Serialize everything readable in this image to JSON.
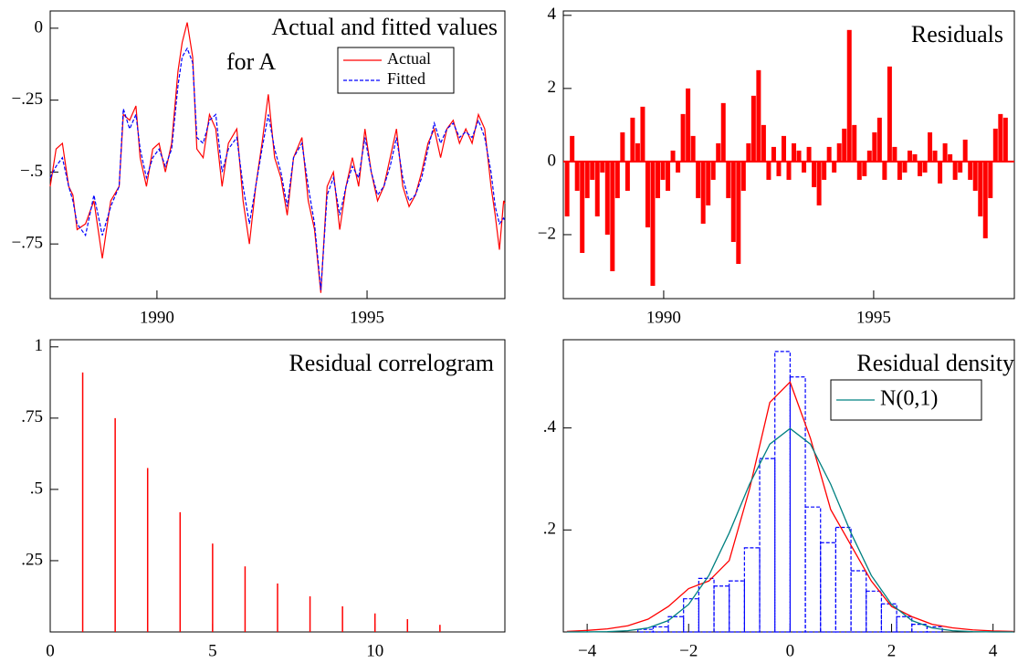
{
  "chart_data": [
    {
      "type": "line",
      "title": [
        "Actual and fitted values",
        "for A"
      ],
      "x": [
        1987.46,
        1987.6,
        1987.75,
        1987.9,
        1988.0,
        1988.1,
        1988.3,
        1988.5,
        1988.7,
        1988.9,
        1989.1,
        1989.2,
        1989.35,
        1989.5,
        1989.6,
        1989.75,
        1989.9,
        1990.05,
        1990.2,
        1990.35,
        1990.5,
        1990.6,
        1990.72,
        1990.85,
        1990.95,
        1991.1,
        1991.25,
        1991.4,
        1991.55,
        1991.7,
        1991.9,
        1992.05,
        1992.2,
        1992.35,
        1992.5,
        1992.65,
        1992.8,
        1992.95,
        1993.1,
        1993.25,
        1993.45,
        1993.6,
        1993.75,
        1993.9,
        1994.05,
        1994.2,
        1994.35,
        1994.5,
        1994.65,
        1994.8,
        1994.95,
        1995.1,
        1995.25,
        1995.4,
        1995.55,
        1995.7,
        1995.85,
        1996.0,
        1996.15,
        1996.3,
        1996.45,
        1996.6,
        1996.75,
        1996.9,
        1997.05,
        1997.2,
        1997.35,
        1997.5,
        1997.65,
        1997.8,
        1997.95,
        1998.05,
        1998.15,
        1998.25,
        1998.28
      ],
      "series": [
        {
          "name": "Actual",
          "color": "#ff0000",
          "line_style": "solid",
          "values": [
            -0.55,
            -0.42,
            -0.4,
            -0.55,
            -0.58,
            -0.7,
            -0.68,
            -0.6,
            -0.8,
            -0.6,
            -0.55,
            -0.3,
            -0.32,
            -0.27,
            -0.45,
            -0.55,
            -0.42,
            -0.4,
            -0.5,
            -0.4,
            -0.15,
            -0.05,
            0.02,
            -0.1,
            -0.42,
            -0.45,
            -0.3,
            -0.35,
            -0.55,
            -0.4,
            -0.35,
            -0.6,
            -0.75,
            -0.55,
            -0.4,
            -0.23,
            -0.45,
            -0.52,
            -0.65,
            -0.45,
            -0.38,
            -0.6,
            -0.7,
            -0.92,
            -0.55,
            -0.5,
            -0.7,
            -0.55,
            -0.45,
            -0.55,
            -0.35,
            -0.5,
            -0.6,
            -0.55,
            -0.45,
            -0.35,
            -0.55,
            -0.62,
            -0.58,
            -0.5,
            -0.4,
            -0.35,
            -0.45,
            -0.35,
            -0.32,
            -0.4,
            -0.35,
            -0.4,
            -0.3,
            -0.35,
            -0.55,
            -0.65,
            -0.77,
            -0.6,
            -0.61
          ]
        },
        {
          "name": "Fitted",
          "color": "#0000ff",
          "line_style": "dashed",
          "values": [
            -0.52,
            -0.48,
            -0.45,
            -0.55,
            -0.6,
            -0.68,
            -0.72,
            -0.58,
            -0.72,
            -0.62,
            -0.55,
            -0.28,
            -0.35,
            -0.3,
            -0.42,
            -0.52,
            -0.45,
            -0.42,
            -0.48,
            -0.42,
            -0.2,
            -0.1,
            -0.07,
            -0.12,
            -0.38,
            -0.4,
            -0.32,
            -0.3,
            -0.5,
            -0.42,
            -0.38,
            -0.55,
            -0.68,
            -0.55,
            -0.42,
            -0.3,
            -0.42,
            -0.5,
            -0.62,
            -0.45,
            -0.4,
            -0.55,
            -0.68,
            -0.91,
            -0.58,
            -0.52,
            -0.65,
            -0.55,
            -0.48,
            -0.52,
            -0.38,
            -0.5,
            -0.58,
            -0.55,
            -0.48,
            -0.38,
            -0.52,
            -0.6,
            -0.58,
            -0.52,
            -0.42,
            -0.33,
            -0.4,
            -0.35,
            -0.33,
            -0.38,
            -0.36,
            -0.38,
            -0.32,
            -0.38,
            -0.5,
            -0.62,
            -0.68,
            -0.66,
            -0.67
          ]
        }
      ],
      "xlim": [
        1987.46,
        1998.28
      ],
      "xticks": [
        1990,
        1995
      ],
      "ylim": [
        -0.94,
        0.06
      ],
      "yticks": [
        0,
        {
          "value": -0.25,
          "label": "−.25"
        },
        {
          "value": -0.5,
          "label": "−.5"
        },
        {
          "value": -0.75,
          "label": "−.75"
        }
      ]
    },
    {
      "type": "bar",
      "title": "Residuals",
      "color": "#ff0000",
      "x": [
        1987.7,
        1987.82,
        1987.94,
        1988.06,
        1988.18,
        1988.3,
        1988.42,
        1988.54,
        1988.66,
        1988.78,
        1988.9,
        1989.02,
        1989.14,
        1989.26,
        1989.38,
        1989.5,
        1989.62,
        1989.74,
        1989.86,
        1989.98,
        1990.1,
        1990.22,
        1990.34,
        1990.46,
        1990.58,
        1990.7,
        1990.82,
        1990.94,
        1991.06,
        1991.18,
        1991.3,
        1991.42,
        1991.54,
        1991.66,
        1991.78,
        1991.9,
        1992.02,
        1992.14,
        1992.26,
        1992.38,
        1992.5,
        1992.62,
        1992.74,
        1992.86,
        1992.98,
        1993.1,
        1993.22,
        1993.34,
        1993.46,
        1993.58,
        1993.7,
        1993.82,
        1993.94,
        1994.06,
        1994.18,
        1994.3,
        1994.42,
        1994.54,
        1994.66,
        1994.78,
        1994.9,
        1995.02,
        1995.14,
        1995.26,
        1995.38,
        1995.5,
        1995.62,
        1995.74,
        1995.86,
        1995.98,
        1996.1,
        1996.22,
        1996.34,
        1996.46,
        1996.58,
        1996.7,
        1996.82,
        1996.94,
        1997.06,
        1997.18,
        1997.3,
        1997.42,
        1997.54,
        1997.66,
        1997.78,
        1997.9,
        1998.02,
        1998.14
      ],
      "values": [
        -1.5,
        0.7,
        -0.8,
        -2.5,
        -1.0,
        -0.5,
        -1.5,
        -0.3,
        -2.0,
        -3.0,
        -1.0,
        0.8,
        -0.8,
        1.2,
        0.5,
        1.5,
        -1.8,
        -3.4,
        -1.0,
        -0.5,
        -0.8,
        0.3,
        -0.3,
        1.3,
        2.0,
        0.7,
        -1.0,
        -1.7,
        -1.2,
        -0.5,
        0.5,
        1.6,
        -1.0,
        -2.2,
        -2.8,
        -0.8,
        0.5,
        1.8,
        2.5,
        1.0,
        -0.5,
        0.4,
        -0.4,
        0.7,
        -0.5,
        0.5,
        0.3,
        -0.3,
        0.4,
        -0.7,
        -1.2,
        -0.5,
        0.4,
        -0.3,
        0.5,
        0.9,
        3.6,
        1.0,
        -0.5,
        -0.4,
        0.3,
        0.8,
        1.2,
        -0.5,
        2.6,
        0.4,
        -0.5,
        -0.3,
        0.3,
        0.2,
        -0.4,
        -0.3,
        0.8,
        0.3,
        -0.6,
        0.5,
        0.2,
        -0.5,
        -0.3,
        0.6,
        -0.5,
        -0.8,
        -1.5,
        -2.1,
        -1.0,
        0.9,
        1.3,
        1.2
      ],
      "xlim": [
        1987.61,
        1998.35
      ],
      "xticks": [
        1990,
        1995
      ],
      "ylim": [
        -3.75,
        4.12
      ],
      "yticks": [
        {
          "value": -2,
          "label": "−2"
        },
        0,
        2,
        4
      ]
    },
    {
      "type": "spike",
      "title": "Residual correlogram",
      "color": "#ff0000",
      "x": [
        1,
        2,
        3,
        4,
        5,
        6,
        7,
        8,
        9,
        10,
        11,
        12
      ],
      "values": [
        0.91,
        0.75,
        0.575,
        0.42,
        0.31,
        0.23,
        0.17,
        0.125,
        0.09,
        0.065,
        0.045,
        0.025
      ],
      "xlim": [
        0,
        14
      ],
      "xticks": [
        0,
        5,
        10
      ],
      "ylim": [
        0,
        1.025
      ],
      "yticks": [
        {
          "value": 0.25,
          "label": ".25"
        },
        {
          "value": 0.5,
          "label": ".5"
        },
        {
          "value": 0.75,
          "label": ".75"
        },
        1
      ]
    },
    {
      "type": "histogram",
      "title": "Residual density",
      "color": "#0000ff",
      "line_style": "dashed",
      "bins": [
        -3.0,
        -2.7,
        -2.4,
        -2.1,
        -1.8,
        -1.5,
        -1.2,
        -0.9,
        -0.6,
        -0.3,
        0,
        0.3,
        0.6,
        0.9,
        1.2,
        1.5,
        1.8,
        2.1,
        2.4,
        2.7,
        3.0
      ],
      "values": [
        0.005,
        0.01,
        0.03,
        0.065,
        0.105,
        0.09,
        0.1,
        0.165,
        0.34,
        0.55,
        0.5,
        0.245,
        0.175,
        0.205,
        0.12,
        0.08,
        0.055,
        0.03,
        0.015,
        0.01
      ],
      "series": [
        {
          "color": "#ff0000",
          "x": [
            -4.4,
            -4.0,
            -3.6,
            -3.2,
            -2.8,
            -2.4,
            -2.0,
            -1.6,
            -1.2,
            -0.8,
            -0.4,
            0,
            0.4,
            0.8,
            1.2,
            1.6,
            2.0,
            2.4,
            2.8,
            3.2,
            3.6,
            4.0,
            4.4
          ],
          "values": [
            0.001,
            0.003,
            0.006,
            0.012,
            0.025,
            0.05,
            0.085,
            0.1,
            0.14,
            0.28,
            0.45,
            0.49,
            0.38,
            0.24,
            0.17,
            0.1,
            0.05,
            0.03,
            0.015,
            0.008,
            0.004,
            0.002,
            0.001
          ]
        },
        {
          "name": "N(0,1)",
          "color": "#008080",
          "x": [
            -4.4,
            -4.0,
            -3.6,
            -3.2,
            -2.8,
            -2.4,
            -2.0,
            -1.6,
            -1.2,
            -0.8,
            -0.4,
            0,
            0.4,
            0.8,
            1.2,
            1.6,
            2.0,
            2.4,
            2.8,
            3.2,
            3.6,
            4.0,
            4.4
          ],
          "values": [
            3e-05,
            0.0001,
            0.0006,
            0.0024,
            0.0079,
            0.0224,
            0.054,
            0.1109,
            0.1942,
            0.2897,
            0.3683,
            0.3989,
            0.3683,
            0.2897,
            0.1942,
            0.1109,
            0.054,
            0.0224,
            0.0079,
            0.0024,
            0.0006,
            0.0001,
            3e-05
          ]
        }
      ],
      "xlim": [
        -4.47,
        4.42
      ],
      "xticks": [
        {
          "value": -4,
          "label": "−4"
        },
        {
          "value": -2,
          "label": "−2"
        },
        0,
        2,
        4
      ],
      "ylim": [
        0,
        0.573
      ],
      "yticks": [
        {
          "value": 0.2,
          "label": ".2"
        },
        {
          "value": 0.4,
          "label": ".4"
        }
      ]
    }
  ]
}
